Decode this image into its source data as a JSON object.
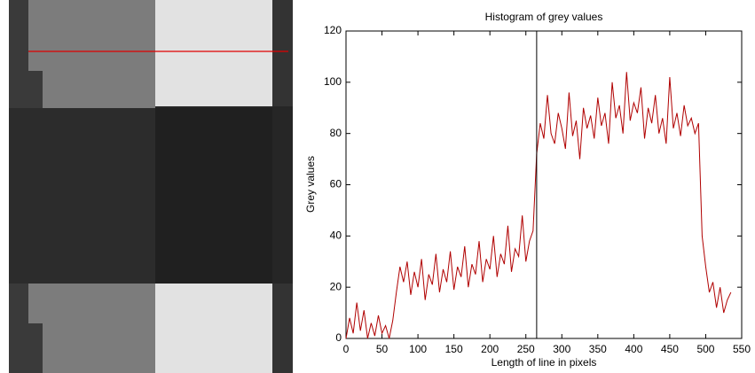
{
  "chart_data": {
    "type": "line",
    "title": "Histogram of grey values",
    "x_label": "Length of line in pixels",
    "y_label": "Grey values",
    "x": [
      0,
      5,
      10,
      15,
      20,
      25,
      30,
      35,
      40,
      45,
      50,
      55,
      60,
      65,
      70,
      75,
      80,
      85,
      90,
      95,
      100,
      105,
      110,
      115,
      120,
      125,
      130,
      135,
      140,
      145,
      150,
      155,
      160,
      165,
      170,
      175,
      180,
      185,
      190,
      195,
      200,
      205,
      210,
      215,
      220,
      225,
      230,
      235,
      240,
      245,
      250,
      255,
      260,
      265,
      270,
      275,
      280,
      285,
      290,
      295,
      300,
      305,
      310,
      315,
      320,
      325,
      330,
      335,
      340,
      345,
      350,
      355,
      360,
      365,
      370,
      375,
      380,
      385,
      390,
      395,
      400,
      405,
      410,
      415,
      420,
      425,
      430,
      435,
      440,
      445,
      450,
      455,
      460,
      465,
      470,
      475,
      480,
      485,
      490,
      495,
      500,
      505,
      510,
      515,
      520,
      525,
      530,
      535
    ],
    "series": [
      {
        "color": "#b00000",
        "values": [
          0,
          8,
          2,
          14,
          3,
          11,
          0,
          6,
          1,
          9,
          2,
          5,
          0,
          7,
          18,
          28,
          22,
          30,
          17,
          26,
          20,
          31,
          15,
          25,
          21,
          33,
          18,
          27,
          22,
          34,
          19,
          28,
          24,
          36,
          20,
          29,
          25,
          38,
          22,
          31,
          27,
          40,
          24,
          33,
          29,
          44,
          26,
          35,
          32,
          48,
          30,
          38,
          42,
          72,
          84,
          78,
          95,
          80,
          76,
          88,
          82,
          74,
          96,
          79,
          85,
          70,
          90,
          82,
          87,
          78,
          94,
          83,
          88,
          76,
          100,
          86,
          91,
          80,
          104,
          85,
          92,
          88,
          98,
          78,
          90,
          84,
          95,
          80,
          86,
          76,
          102,
          82,
          88,
          79,
          91,
          83,
          86,
          80,
          84,
          40,
          28,
          18,
          22,
          12,
          20,
          10,
          15,
          18
        ]
      }
    ],
    "marker_x": 265,
    "xlim": [
      0,
      550
    ],
    "ylim": [
      0,
      120
    ],
    "xticks": [
      0,
      50,
      100,
      150,
      200,
      250,
      300,
      350,
      400,
      450,
      500,
      550
    ],
    "yticks": [
      0,
      20,
      40,
      60,
      80,
      100,
      120
    ]
  }
}
